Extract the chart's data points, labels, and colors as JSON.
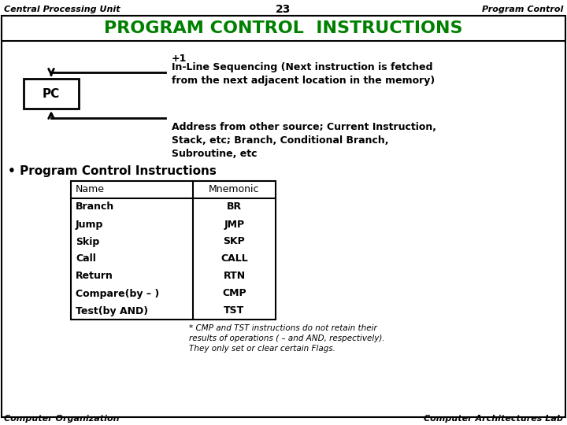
{
  "header_left": "Central Processing Unit",
  "header_center": "23",
  "header_right": "Program Control",
  "title": "PROGRAM CONTROL  INSTRUCTIONS",
  "title_color": "#008000",
  "background_color": "#ffffff",
  "pc_label": "PC",
  "inline_label": "+1",
  "inline_text": "In-Line Sequencing (Next instruction is fetched\nfrom the next adjacent location in the memory)",
  "address_text": "Address from other source; Current Instruction,\nStack, etc; Branch, Conditional Branch,\nSubroutine, etc",
  "bullet_text": "• Program Control Instructions",
  "table_headers": [
    "Name",
    "Mnemonic"
  ],
  "table_rows": [
    [
      "Branch",
      "BR"
    ],
    [
      "Jump",
      "JMP"
    ],
    [
      "Skip",
      "SKP"
    ],
    [
      "Call",
      "CALL"
    ],
    [
      "Return",
      "RTN"
    ],
    [
      "Compare(by – )",
      "CMP"
    ],
    [
      "Test(by AND)",
      "TST"
    ]
  ],
  "footnote": "* CMP and TST instructions do not retain their\nresults of operations ( – and AND, respectively).\nThey only set or clear certain Flags.",
  "footer_left": "Computer Organization",
  "footer_right": "Computer Architectures Lab",
  "outer_border_color": "#000000",
  "text_color": "#000000"
}
